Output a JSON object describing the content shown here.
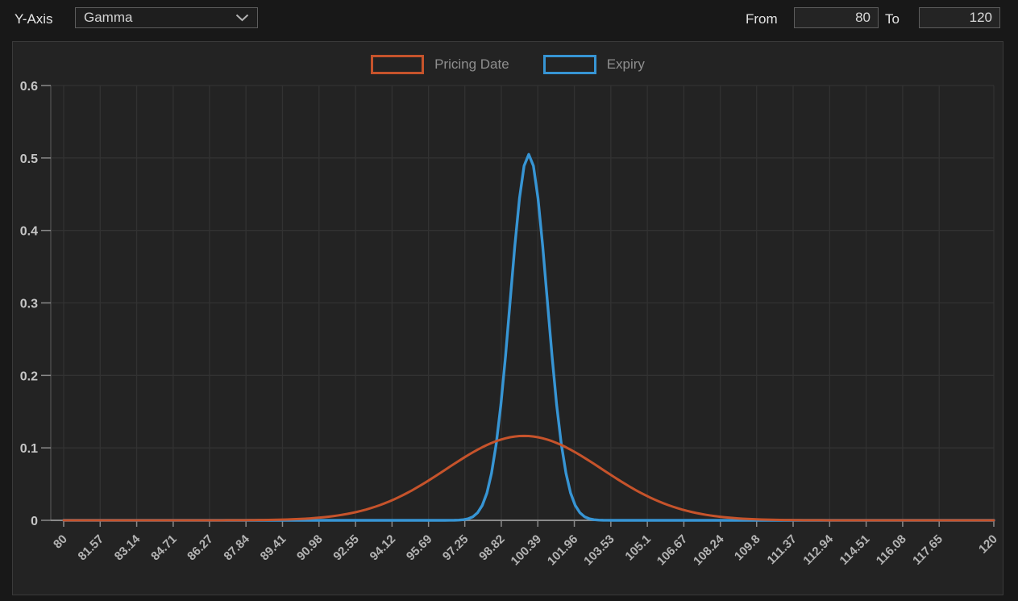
{
  "toolbar": {
    "y_axis_label": "Y-Axis",
    "y_axis_select": {
      "value": "Gamma"
    },
    "from_label": "From",
    "from_value": "80",
    "to_label": "To",
    "to_value": "120"
  },
  "chart_data": {
    "type": "line",
    "title": "",
    "xlabel": "",
    "ylabel": "",
    "xlim": [
      80,
      120
    ],
    "ylim": [
      0,
      0.6
    ],
    "grid": true,
    "legend_position": "top",
    "legend": [
      {
        "name": "Pricing Date",
        "color": "#C6532B"
      },
      {
        "name": "Expiry",
        "color": "#3795D4"
      }
    ],
    "x_tick_labels": [
      "80",
      "81.57",
      "83.14",
      "84.71",
      "86.27",
      "87.84",
      "89.41",
      "90.98",
      "92.55",
      "94.12",
      "95.69",
      "97.25",
      "98.82",
      "100.39",
      "101.96",
      "103.53",
      "105.1",
      "106.67",
      "108.24",
      "109.8",
      "111.37",
      "112.94",
      "114.51",
      "116.08",
      "117.65",
      "120"
    ],
    "x_tick_values": [
      80,
      81.57,
      83.14,
      84.71,
      86.27,
      87.84,
      89.41,
      90.98,
      92.55,
      94.12,
      95.69,
      97.25,
      98.82,
      100.39,
      101.96,
      103.53,
      105.1,
      106.67,
      108.24,
      109.8,
      111.37,
      112.94,
      114.51,
      116.08,
      117.65,
      120
    ],
    "y_tick_labels": [
      "0",
      "0.1",
      "0.2",
      "0.3",
      "0.4",
      "0.5",
      "0.6"
    ],
    "y_tick_values": [
      0,
      0.1,
      0.2,
      0.3,
      0.4,
      0.5,
      0.6
    ],
    "series": [
      {
        "name": "Pricing Date",
        "color": "#C6532B",
        "stroke_width": 3,
        "model": {
          "shape": "gaussian",
          "peak": 0.1165,
          "mean": 99.8,
          "sigma": 3.35
        },
        "values_at_ticks": [
          0,
          0,
          0,
          0,
          0,
          0.0002,
          0.0009,
          0.0036,
          0.0112,
          0.0277,
          0.0549,
          0.0872,
          0.1116,
          0.1147,
          0.0946,
          0.0627,
          0.0333,
          0.0142,
          0.0049,
          0.0014,
          0.0003,
          0.0001,
          0,
          0,
          0,
          0
        ]
      },
      {
        "name": "Expiry",
        "color": "#3795D4",
        "stroke_width": 3.4,
        "model": {
          "shape": "gaussian",
          "peak": 0.505,
          "mean": 100.0,
          "sigma": 0.79
        },
        "values_at_ticks": [
          0,
          0,
          0,
          0,
          0,
          0,
          0,
          0,
          0,
          0,
          0,
          0.0012,
          0.1655,
          0.4471,
          0.0233,
          0,
          0,
          0,
          0,
          0,
          0,
          0,
          0,
          0,
          0,
          0
        ]
      }
    ],
    "style": {
      "panel_bg": "#232323",
      "page_bg": "#181818",
      "grid_color": "#323232",
      "x_axis_line_color": "#8a8a8a",
      "y_axis_line_color": "#4a4a4a",
      "tick_mark_color": "#8a8a8a",
      "y_tick_label_color": "#c6c6c6",
      "x_tick_label_color": "#b4b4b4"
    }
  }
}
